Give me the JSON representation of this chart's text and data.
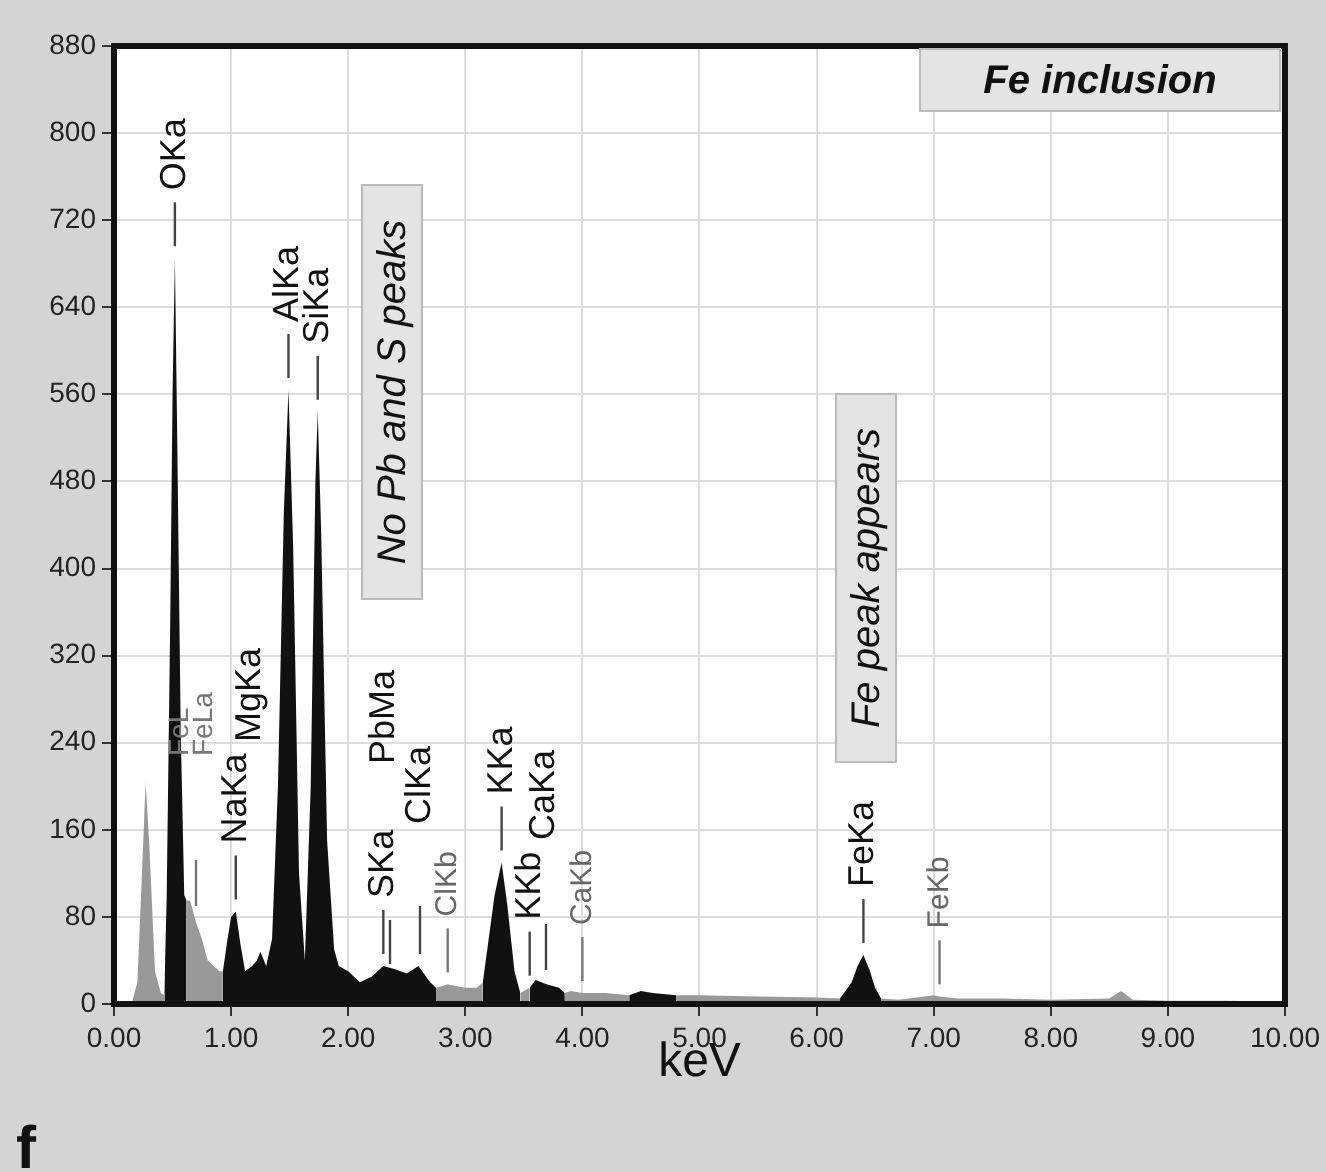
{
  "chart_data": {
    "type": "area",
    "xlabel": "keV",
    "xlim": [
      0,
      10
    ],
    "xticks": [
      {
        "value": 0,
        "label": "0.00"
      },
      {
        "value": 1,
        "label": "1.00"
      },
      {
        "value": 2,
        "label": "2.00"
      },
      {
        "value": 3,
        "label": "3.00"
      },
      {
        "value": 4,
        "label": "4.00"
      },
      {
        "value": 5,
        "label": "5.00"
      },
      {
        "value": 6,
        "label": "6.00"
      },
      {
        "value": 7,
        "label": "7.00"
      },
      {
        "value": 8,
        "label": "8.00"
      },
      {
        "value": 9,
        "label": "9.00"
      },
      {
        "value": 10,
        "label": "10.00"
      }
    ],
    "ylim": [
      0,
      880
    ],
    "yticks": [
      0,
      80,
      160,
      240,
      320,
      400,
      480,
      560,
      640,
      720,
      800,
      880
    ],
    "grid": true,
    "legend": false,
    "series": [
      {
        "color": "#999999",
        "x": [
          0.15,
          0.2,
          0.25,
          0.27,
          0.3,
          0.35,
          0.4,
          0.43,
          0.5,
          0.62,
          0.65,
          0.7,
          0.75,
          0.8,
          0.85,
          0.9,
          0.93,
          1.5,
          2.75,
          2.85,
          3.0,
          3.1,
          3.15,
          3.3,
          3.47,
          3.55,
          3.7,
          3.85,
          3.9,
          4.0,
          4.2,
          4.4,
          4.6,
          4.8,
          5.0,
          5.5,
          6.0,
          6.2,
          6.4,
          6.55,
          6.7,
          7.0,
          7.05,
          7.2,
          7.6,
          8.0,
          8.5,
          8.6,
          8.65,
          8.7,
          9.0,
          9.5,
          10.0
        ],
        "values": [
          0,
          20,
          150,
          204,
          150,
          30,
          10,
          8,
          null,
          95,
          95,
          75,
          60,
          40,
          35,
          30,
          30,
          null,
          15,
          18,
          15,
          15,
          20,
          null,
          10,
          15,
          null,
          10,
          12,
          10,
          10,
          8,
          null,
          8,
          8,
          7,
          6,
          5,
          null,
          5,
          4,
          8,
          7,
          5,
          5,
          4,
          5,
          12,
          8,
          4,
          3,
          3,
          2
        ]
      },
      {
        "color": "#111111",
        "x": [
          0.43,
          0.45,
          0.48,
          0.5,
          0.52,
          0.54,
          0.57,
          0.6,
          0.62,
          0.7,
          0.93,
          0.97,
          1.0,
          1.04,
          1.08,
          1.12,
          1.18,
          1.22,
          1.25,
          1.3,
          1.35,
          1.4,
          1.45,
          1.49,
          1.53,
          1.58,
          1.63,
          1.68,
          1.72,
          1.74,
          1.77,
          1.82,
          1.88,
          1.92,
          2.0,
          2.1,
          2.2,
          2.3,
          2.4,
          2.5,
          2.6,
          2.7,
          2.75,
          3.0,
          3.15,
          3.2,
          3.25,
          3.31,
          3.36,
          3.42,
          3.47,
          3.5,
          3.55,
          3.6,
          3.7,
          3.8,
          3.85,
          4.0,
          4.4,
          4.5,
          4.6,
          4.8,
          5.5,
          6.2,
          6.3,
          6.35,
          6.4,
          6.45,
          6.5,
          6.55
        ],
        "values": [
          10,
          100,
          350,
          560,
          685,
          520,
          250,
          100,
          95,
          null,
          30,
          60,
          80,
          85,
          55,
          30,
          35,
          40,
          48,
          35,
          60,
          200,
          450,
          564,
          420,
          120,
          40,
          200,
          480,
          544,
          430,
          150,
          50,
          35,
          30,
          20,
          25,
          35,
          32,
          28,
          35,
          20,
          15,
          null,
          20,
          60,
          100,
          130,
          90,
          30,
          10,
          null,
          15,
          22,
          18,
          15,
          10,
          null,
          8,
          12,
          10,
          8,
          null,
          5,
          20,
          35,
          45,
          32,
          15,
          5
        ]
      }
    ],
    "annotations": [
      {
        "text": "OKa",
        "x": 0.52,
        "y": 685
      },
      {
        "text": "NaKa",
        "x": 1.04,
        "y": 85
      },
      {
        "text": "AlKa",
        "x": 1.49,
        "y": 564
      },
      {
        "text": "SiKa",
        "x": 1.74,
        "y": 544
      },
      {
        "text": "SKa",
        "x": 2.3,
        "y": 35
      },
      {
        "text": "ClKb",
        "x": 2.85,
        "y": 18
      },
      {
        "text": "KKa",
        "x": 3.31,
        "y": 130
      },
      {
        "text": "KKb",
        "x": 3.55,
        "y": 15
      },
      {
        "text": "CaKb",
        "x": 4.0,
        "y": 10
      },
      {
        "text": "FeKa",
        "x": 6.4,
        "y": 45
      },
      {
        "text": "FeKb",
        "x": 7.05,
        "y": 7
      },
      "Fe inclusion",
      "No Pb and S peaks",
      "Fe peak appears",
      "f",
      "FeL",
      "FeLa",
      "MgKa",
      "PbMa",
      "ClKa",
      "CaKa"
    ]
  }
}
